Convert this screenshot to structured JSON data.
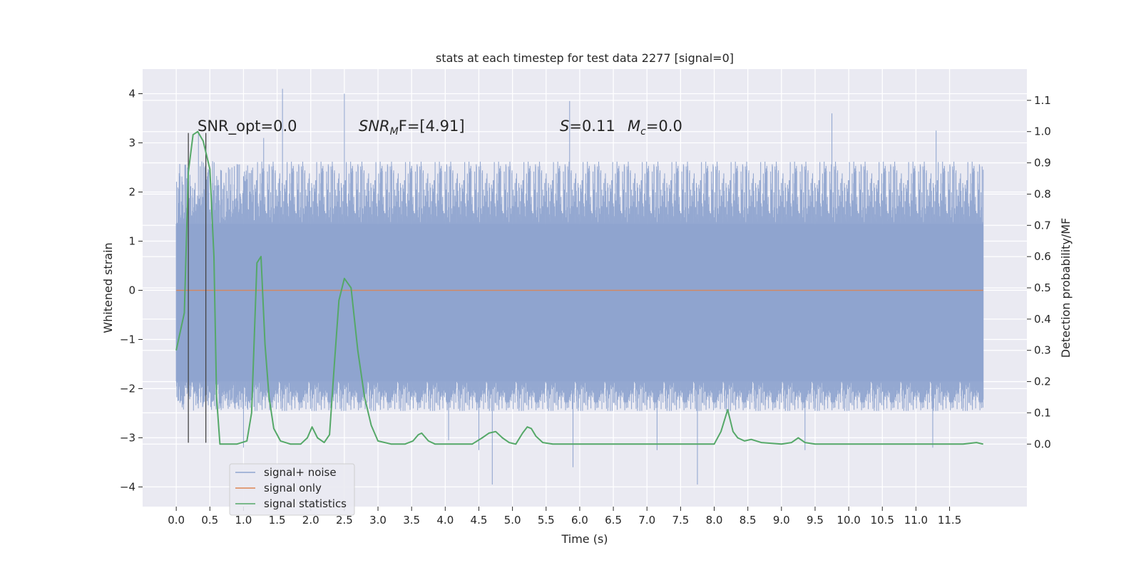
{
  "chart_data": {
    "type": "line",
    "title": "stats at each timestep for test data 2277 [signal=0]",
    "xlabel": "Time (s)",
    "ylabel_left": "Whitened strain",
    "ylabel_right": "Detection probability/MF",
    "xlim": [
      -0.5,
      12.65
    ],
    "ylim_left": [
      -4.4,
      4.5
    ],
    "ylim_right": [
      -0.2,
      1.2
    ],
    "x_ticks": [
      0.0,
      0.5,
      1.0,
      1.5,
      2.0,
      2.5,
      3.0,
      3.5,
      4.0,
      4.5,
      5.0,
      5.5,
      6.0,
      6.5,
      7.0,
      7.5,
      8.0,
      8.5,
      9.0,
      9.5,
      10.0,
      10.5,
      11.0,
      11.5
    ],
    "x_tick_labels": [
      "0.0",
      "0.5",
      "1.0",
      "1.5",
      "2.0",
      "2.5",
      "3.0",
      "3.5",
      "4.0",
      "4.5",
      "5.0",
      "5.5",
      "6.0",
      "6.5",
      "7.0",
      "7.5",
      "8.0",
      "8.5",
      "9.0",
      "9.5",
      "10.0",
      "10.5",
      "11.0",
      "11.5"
    ],
    "y_left_ticks": [
      -4,
      -3,
      -2,
      -1,
      0,
      1,
      2,
      3,
      4
    ],
    "y_left_tick_labels": [
      "−4",
      "−3",
      "−2",
      "−1",
      "0",
      "1",
      "2",
      "3",
      "4"
    ],
    "y_right_ticks": [
      0.0,
      0.1,
      0.2,
      0.3,
      0.4,
      0.5,
      0.6,
      0.7,
      0.8,
      0.9,
      1.0,
      1.1
    ],
    "y_right_tick_labels": [
      "0.0",
      "0.1",
      "0.2",
      "0.3",
      "0.4",
      "0.5",
      "0.6",
      "0.7",
      "0.8",
      "0.9",
      "1.0",
      "1.1"
    ],
    "grid": true,
    "legend_position": "lower-left",
    "annotations": {
      "snr_opt": "SNR_opt=0.0",
      "snr_mf_main": "SNR",
      "snr_mf_sub": "M",
      "snr_mf_rest": "F=[4.91]",
      "s_label": "S",
      "s_value": "=0.11",
      "mc_main": "M",
      "mc_sub": "c",
      "mc_value": "=0.0"
    },
    "vertical_markers": {
      "x": [
        0.18,
        0.44
      ],
      "y_bottom": -3.1,
      "y_top": 3.2
    },
    "series": [
      {
        "name": "signal+ noise",
        "color": "#8fa4cf",
        "axis": "left",
        "x_range": [
          0.0,
          12.0
        ],
        "core_band": [
          -1.85,
          1.35
        ],
        "typical_band": [
          -2.3,
          2.3
        ],
        "spikes": [
          [
            1.58,
            4.1
          ],
          [
            2.5,
            4.0
          ],
          [
            5.85,
            3.85
          ],
          [
            9.75,
            3.6
          ],
          [
            11.3,
            3.25
          ],
          [
            0.33,
            3.2
          ],
          [
            1.3,
            3.1
          ],
          [
            4.7,
            -3.95
          ],
          [
            5.9,
            -3.6
          ],
          [
            7.75,
            -3.95
          ],
          [
            4.5,
            -3.25
          ],
          [
            7.15,
            -3.25
          ],
          [
            9.35,
            -3.25
          ],
          [
            11.25,
            -3.2
          ],
          [
            1.0,
            -3.2
          ],
          [
            4.05,
            -3.05
          ]
        ]
      },
      {
        "name": "signal only",
        "color": "#dd8452",
        "axis": "left",
        "x": [
          0.0,
          12.0
        ],
        "y": [
          0.0,
          0.0
        ]
      },
      {
        "name": "signal statistics",
        "color": "#55a868",
        "axis": "right",
        "x": [
          0.0,
          0.12,
          0.18,
          0.25,
          0.32,
          0.4,
          0.5,
          0.56,
          0.6,
          0.65,
          0.75,
          0.9,
          1.05,
          1.12,
          1.2,
          1.26,
          1.32,
          1.38,
          1.45,
          1.55,
          1.7,
          1.85,
          1.95,
          2.02,
          2.1,
          2.2,
          2.28,
          2.35,
          2.42,
          2.5,
          2.6,
          2.7,
          2.8,
          2.9,
          3.0,
          3.2,
          3.4,
          3.52,
          3.6,
          3.65,
          3.75,
          3.85,
          4.0,
          4.2,
          4.4,
          4.55,
          4.65,
          4.75,
          4.85,
          4.95,
          5.05,
          5.15,
          5.22,
          5.28,
          5.35,
          5.45,
          5.6,
          6.0,
          6.5,
          7.0,
          7.5,
          7.8,
          8.0,
          8.1,
          8.2,
          8.28,
          8.35,
          8.45,
          8.55,
          8.7,
          9.0,
          9.15,
          9.25,
          9.35,
          9.5,
          9.8,
          10.2,
          10.8,
          11.4,
          11.7,
          11.9,
          12.0
        ],
        "y": [
          0.3,
          0.42,
          0.87,
          0.99,
          1.0,
          0.97,
          0.88,
          0.6,
          0.15,
          0.0,
          0.0,
          0.0,
          0.01,
          0.1,
          0.58,
          0.6,
          0.32,
          0.15,
          0.05,
          0.01,
          0.0,
          0.0,
          0.02,
          0.055,
          0.02,
          0.005,
          0.03,
          0.25,
          0.46,
          0.53,
          0.5,
          0.3,
          0.15,
          0.06,
          0.01,
          0.0,
          0.0,
          0.01,
          0.03,
          0.035,
          0.01,
          0.0,
          0.0,
          0.0,
          0.0,
          0.02,
          0.035,
          0.04,
          0.02,
          0.005,
          0.0,
          0.035,
          0.055,
          0.05,
          0.025,
          0.005,
          0.0,
          0.0,
          0.0,
          0.0,
          0.0,
          0.0,
          0.0,
          0.04,
          0.11,
          0.04,
          0.02,
          0.01,
          0.015,
          0.005,
          0.0,
          0.005,
          0.02,
          0.005,
          0.0,
          0.0,
          0.0,
          0.0,
          0.0,
          0.0,
          0.005,
          0.0
        ]
      }
    ]
  }
}
